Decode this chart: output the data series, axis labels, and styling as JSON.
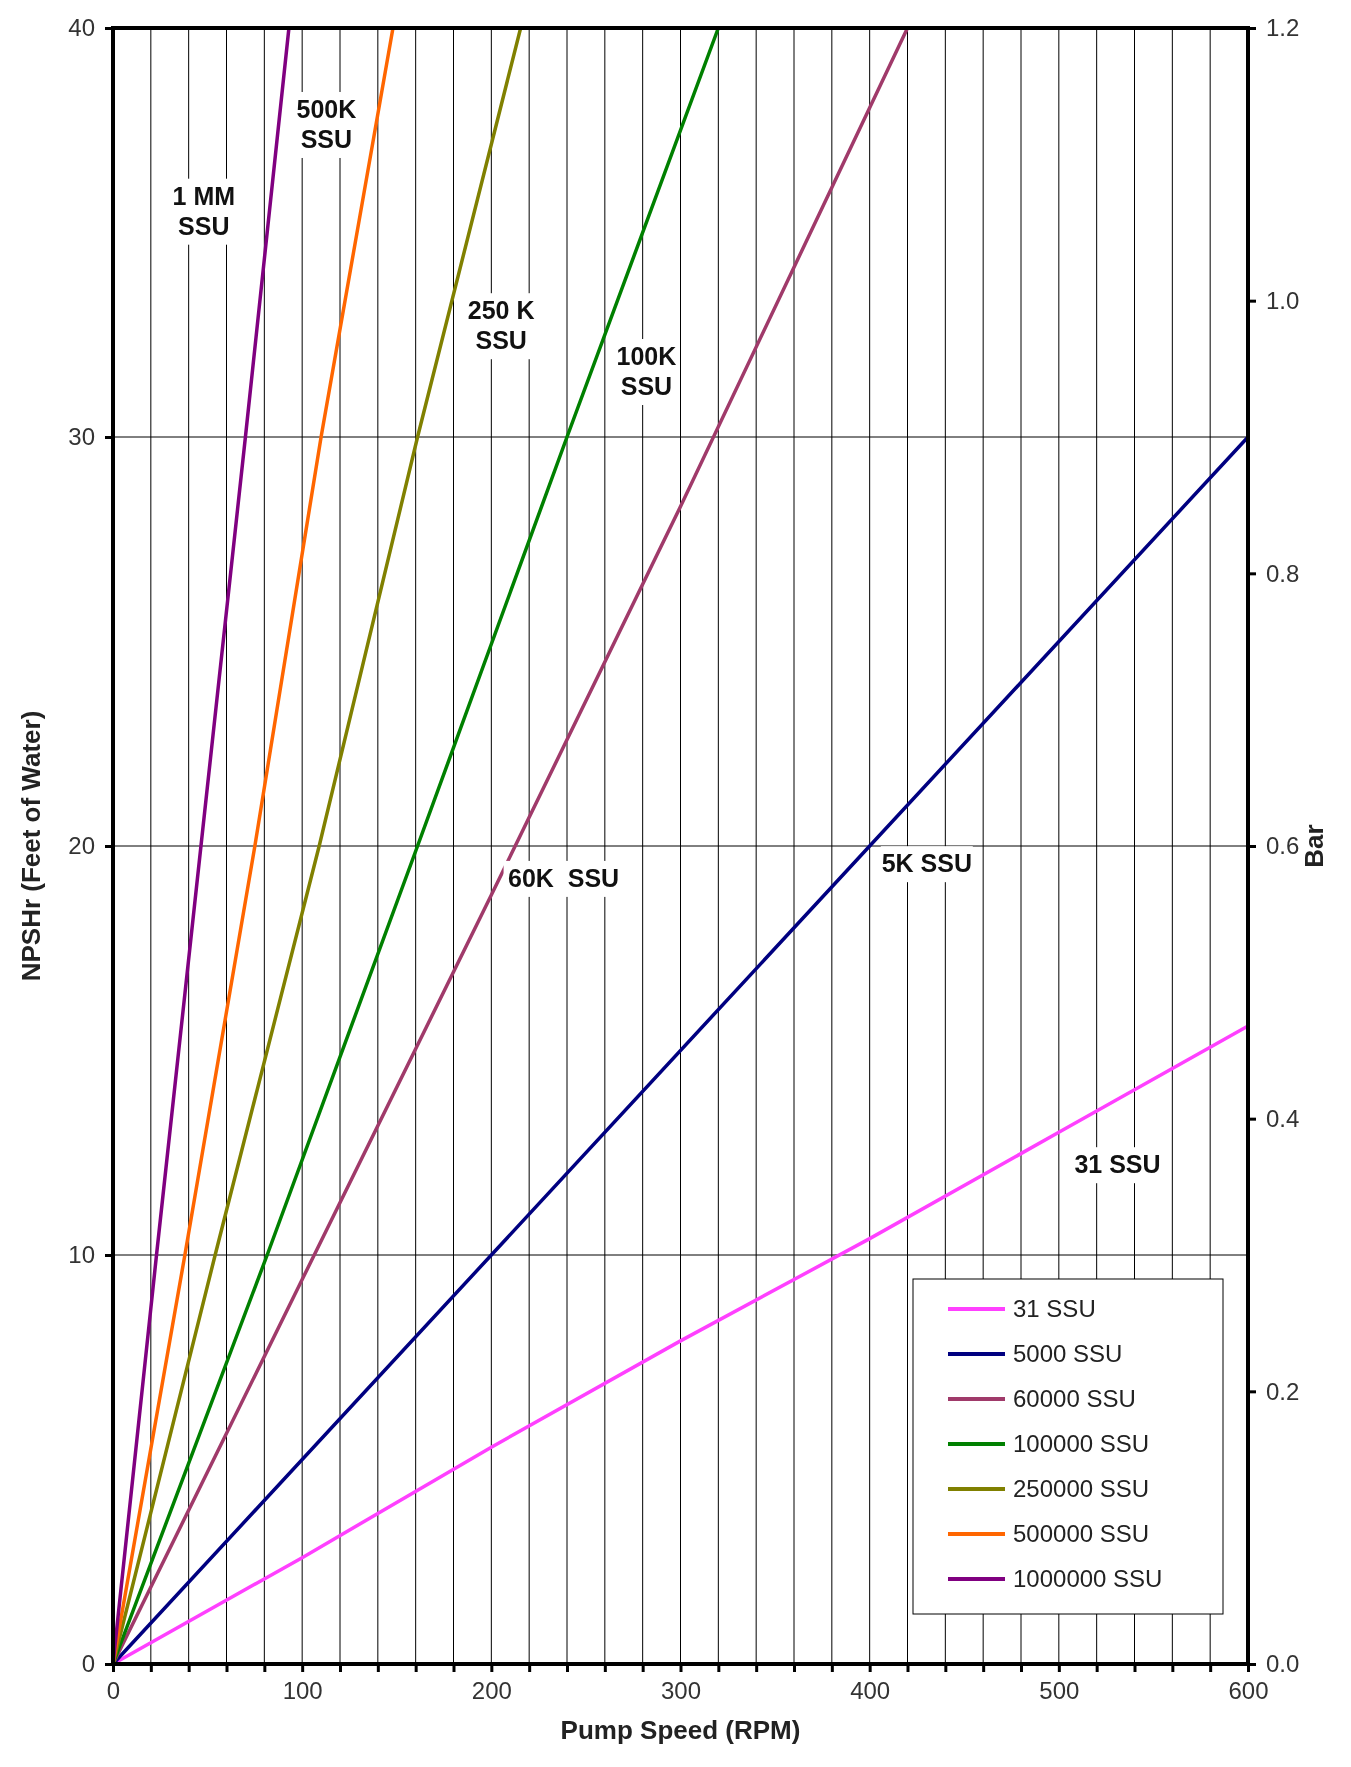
{
  "chart_data": {
    "type": "line",
    "xlabel": "Pump Speed (RPM)",
    "ylabel": "NPSHr (Feet of Water)",
    "y2label": "Bar",
    "xlim": [
      0,
      600
    ],
    "ylim": [
      0,
      40
    ],
    "y2lim": [
      0,
      1.2
    ],
    "xticks": [
      0,
      {
        "value": 20,
        "label": null
      },
      {
        "value": 40,
        "label": null
      },
      {
        "value": 60,
        "label": null
      },
      {
        "value": 80,
        "label": null
      },
      100,
      {
        "value": 120,
        "label": null
      },
      {
        "value": 140,
        "label": null
      },
      {
        "value": 160,
        "label": null
      },
      {
        "value": 180,
        "label": null
      },
      200,
      {
        "value": 220,
        "label": null
      },
      {
        "value": 240,
        "label": null
      },
      {
        "value": 260,
        "label": null
      },
      {
        "value": 280,
        "label": null
      },
      300,
      {
        "value": 320,
        "label": null
      },
      {
        "value": 340,
        "label": null
      },
      {
        "value": 360,
        "label": null
      },
      {
        "value": 380,
        "label": null
      },
      400,
      {
        "value": 420,
        "label": null
      },
      {
        "value": 440,
        "label": null
      },
      {
        "value": 460,
        "label": null
      },
      {
        "value": 480,
        "label": null
      },
      500,
      {
        "value": 520,
        "label": null
      },
      {
        "value": 540,
        "label": null
      },
      {
        "value": 560,
        "label": null
      },
      {
        "value": 580,
        "label": null
      },
      600
    ],
    "yticks": [
      0,
      10,
      20,
      30,
      40
    ],
    "y2ticks": [
      {
        "value": 0,
        "label": "0.0"
      },
      0.2,
      0.4,
      0.6,
      0.8,
      {
        "value": 1,
        "label": "1.0"
      },
      1.2
    ],
    "grid": true,
    "legend": "bottom right",
    "line_style": "solid",
    "series": [
      {
        "name": "31 SSU",
        "color": "#ff40ff",
        "x": [
          0,
          100,
          200,
          300,
          400,
          500,
          600
        ],
        "values": [
          0,
          2.6,
          5.3,
          7.9,
          10.4,
          13.0,
          15.6
        ]
      },
      {
        "name": "5000 SSU",
        "color": "#000080",
        "x": [
          0,
          200,
          400,
          600
        ],
        "values": [
          0,
          10,
          20,
          30
        ]
      },
      {
        "name": "60000 SSU",
        "color": "#a03a6a",
        "x": [
          0,
          100,
          200,
          300,
          420
        ],
        "values": [
          0,
          9.4,
          18.8,
          28.3,
          40
        ]
      },
      {
        "name": "100000 SSU",
        "color": "#008000",
        "x": [
          0,
          81.5,
          161,
          240,
          320
        ],
        "values": [
          0,
          10,
          20,
          30,
          40
        ]
      },
      {
        "name": "250000 SSU",
        "color": "#808000",
        "x": [
          0,
          54,
          109,
          161,
          215.5
        ],
        "values": [
          0,
          10,
          20,
          30,
          40
        ]
      },
      {
        "name": "500000 SSU",
        "color": "#ff6600",
        "x": [
          0,
          38,
          75,
          110,
          148
        ],
        "values": [
          0,
          10,
          20,
          30,
          40
        ]
      },
      {
        "name": "1000000 SSU",
        "color": "#800080",
        "x": [
          0,
          23,
          46.5,
          70,
          93
        ],
        "values": [
          0,
          10,
          20,
          30,
          40
        ]
      }
    ],
    "annotations": [
      "500K SSU",
      "1 MM SSU",
      "250 K SSU",
      "100K SSU",
      "60K  SSU",
      "5K SSU",
      "31 SSU"
    ]
  }
}
